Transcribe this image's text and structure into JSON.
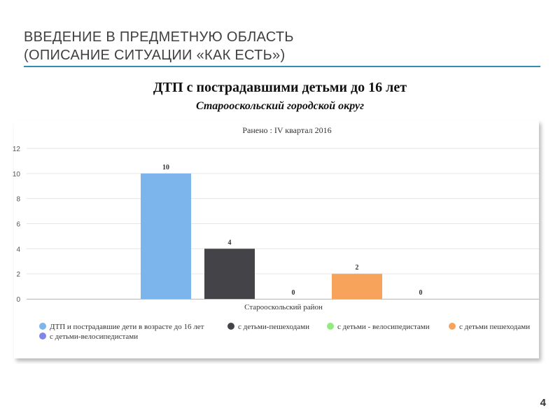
{
  "slide": {
    "title_line1": "ВВЕДЕНИЕ В ПРЕДМЕТНУЮ ОБЛАСТЬ",
    "title_line2": "(ОПИСАНИЕ СИТУАЦИИ «КАК ЕСТЬ»)",
    "heading": "ДТП с пострадавшими детьми до 16 лет",
    "subheading": "Старооскольский городской округ",
    "page_number": "4",
    "accent_color": "#2e8fb0"
  },
  "chart_data": {
    "type": "bar",
    "title": "Ранено : IV квартал 2016",
    "xlabel": "Старооскольский район",
    "ylabel": "",
    "ylim": [
      0,
      12
    ],
    "yticks": [
      0,
      2,
      4,
      6,
      8,
      10,
      12
    ],
    "grid": true,
    "legend_position": "bottom",
    "categories": [
      "Старооскольский район"
    ],
    "series": [
      {
        "name": "ДТП и пострадавшие дети в возрасте до 16 лет",
        "values": [
          10
        ],
        "color": "#7cb5ec"
      },
      {
        "name": "с детьми-пешеходами",
        "values": [
          4
        ],
        "color": "#434348"
      },
      {
        "name": "с детьми - велосипедистами",
        "values": [
          0
        ],
        "color": "#90ed7d"
      },
      {
        "name": "с детьми пешеходами",
        "values": [
          2
        ],
        "color": "#f7a35c"
      },
      {
        "name": "с детьми-велосипедистами",
        "values": [
          0
        ],
        "color": "#8085e9"
      }
    ]
  }
}
